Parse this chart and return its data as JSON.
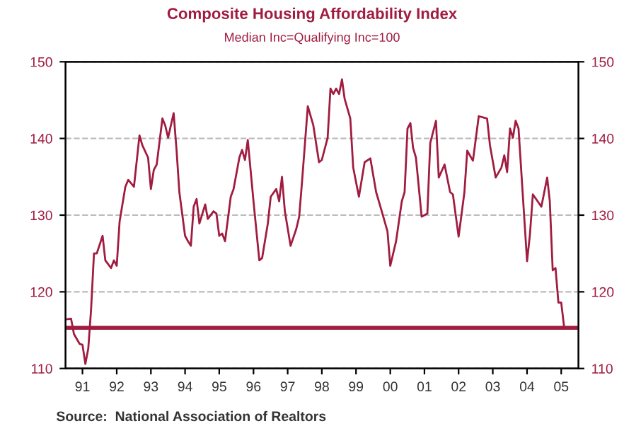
{
  "chart_data": {
    "type": "line",
    "title": "Composite Housing Affordability Index",
    "subtitle": "Median Inc=Qualifying Inc=100",
    "annotations": [
      "Source:  National Association of Realtors"
    ],
    "x": [
      "1991-01",
      "1991-03",
      "1991-04",
      "1991-06",
      "1991-07",
      "1991-08",
      "1991-09",
      "1991-10",
      "1991-11",
      "1991-12",
      "1992-02",
      "1992-03",
      "1992-05",
      "1992-06",
      "1992-07",
      "1992-08",
      "1992-10",
      "1992-11",
      "1993-01",
      "1993-03",
      "1993-04",
      "1993-06",
      "1993-07",
      "1993-08",
      "1993-09",
      "1993-11",
      "1993-12",
      "1994-01",
      "1994-03",
      "1994-04",
      "1994-05",
      "1994-07",
      "1994-08",
      "1994-09",
      "1994-10",
      "1994-11",
      "1994-12",
      "1995-02",
      "1995-03",
      "1995-05",
      "1995-06",
      "1995-07",
      "1995-08",
      "1995-09",
      "1995-11",
      "1995-12",
      "1996-02",
      "1996-03",
      "1996-04",
      "1996-05",
      "1996-07",
      "1996-09",
      "1996-10",
      "1996-12",
      "1997-01",
      "1997-03",
      "1997-04",
      "1997-05",
      "1997-06",
      "1997-08",
      "1997-10",
      "1997-11",
      "1997-12",
      "1998-02",
      "1998-04",
      "1998-06",
      "1998-07",
      "1998-09",
      "1998-10",
      "1998-11",
      "1998-12",
      "1999-01",
      "1999-02",
      "1999-03",
      "1999-05",
      "1999-06",
      "1999-08",
      "1999-10",
      "1999-12",
      "2000-02",
      "2000-04",
      "2000-06",
      "2000-07",
      "2000-09",
      "2000-11",
      "2000-12",
      "2001-01",
      "2001-02",
      "2001-03",
      "2001-04",
      "2001-06",
      "2001-08",
      "2001-09",
      "2001-11",
      "2001-12",
      "2002-02",
      "2002-04",
      "2002-05",
      "2002-07",
      "2002-09",
      "2002-10",
      "2002-12",
      "2003-02",
      "2003-04",
      "2003-05",
      "2003-06",
      "2003-08",
      "2003-10",
      "2003-11",
      "2003-12",
      "2004-01",
      "2004-02",
      "2004-03",
      "2004-04",
      "2004-07",
      "2004-08",
      "2004-09",
      "2004-12",
      "2005-02",
      "2005-03",
      "2005-04",
      "2005-05",
      "2005-06",
      "2005-07",
      "2005-08"
    ],
    "series": [
      {
        "color": "#a01c40",
        "values": [
          116.4,
          116.5,
          114.5,
          113.2,
          113.1,
          110.6,
          112.6,
          117.7,
          125.0,
          125.0,
          127.3,
          124.1,
          123.1,
          124.1,
          123.4,
          129.2,
          133.7,
          134.6,
          133.7,
          140.4,
          139.1,
          137.5,
          133.4,
          135.9,
          136.6,
          142.6,
          141.7,
          140.1,
          143.3,
          138.5,
          133.0,
          127.3,
          126.6,
          126.0,
          131.1,
          132.1,
          128.9,
          131.4,
          129.5,
          130.5,
          130.2,
          127.3,
          127.6,
          126.6,
          132.4,
          133.4,
          137.5,
          138.5,
          137.2,
          139.8,
          131.8,
          124.1,
          124.4,
          128.9,
          132.4,
          133.4,
          131.8,
          135.0,
          130.5,
          126.0,
          128.2,
          129.8,
          134.3,
          144.2,
          141.7,
          136.9,
          137.2,
          140.1,
          146.5,
          145.8,
          146.5,
          145.8,
          147.7,
          145.2,
          142.6,
          136.2,
          132.4,
          136.9,
          137.4,
          133.0,
          130.5,
          127.9,
          123.4,
          126.6,
          131.8,
          133.0,
          141.3,
          142.0,
          138.8,
          137.5,
          129.8,
          130.2,
          139.4,
          142.3,
          134.9,
          136.6,
          133.0,
          132.7,
          127.2,
          133.0,
          138.4,
          137.1,
          142.9,
          142.7,
          142.6,
          139.1,
          134.9,
          136.2,
          137.8,
          135.6,
          141.3,
          140.1,
          142.3,
          141.3,
          124.0,
          127.5,
          132.7,
          131.1,
          134.9,
          131.8,
          122.8,
          123.1,
          118.6,
          118.6,
          115.4
        ]
      }
    ],
    "xlim": [
      "1991-01",
      "2006-01"
    ],
    "xticks": [
      {
        "value": "1991-07",
        "label": "91"
      },
      {
        "value": "1992-07",
        "label": "92"
      },
      {
        "value": "1993-07",
        "label": "93"
      },
      {
        "value": "1994-07",
        "label": "94"
      },
      {
        "value": "1995-07",
        "label": "95"
      },
      {
        "value": "1996-07",
        "label": "96"
      },
      {
        "value": "1997-07",
        "label": "97"
      },
      {
        "value": "1998-07",
        "label": "98"
      },
      {
        "value": "1999-07",
        "label": "99"
      },
      {
        "value": "2000-07",
        "label": "00"
      },
      {
        "value": "2001-07",
        "label": "01"
      },
      {
        "value": "2002-07",
        "label": "02"
      },
      {
        "value": "2003-07",
        "label": "03"
      },
      {
        "value": "2004-07",
        "label": "04"
      },
      {
        "value": "2005-07",
        "label": "05"
      }
    ],
    "ylim": [
      110,
      150
    ],
    "yticks": [
      110,
      120,
      130,
      140,
      150
    ],
    "y2lim": [
      110,
      150
    ],
    "y2ticks": [
      110,
      120,
      130,
      140,
      150
    ],
    "ref_lines": [
      {
        "axis": "y",
        "value": 115.3,
        "color": "#a01c40"
      }
    ],
    "grid": "y",
    "line_style": "solid",
    "marker": "none"
  }
}
